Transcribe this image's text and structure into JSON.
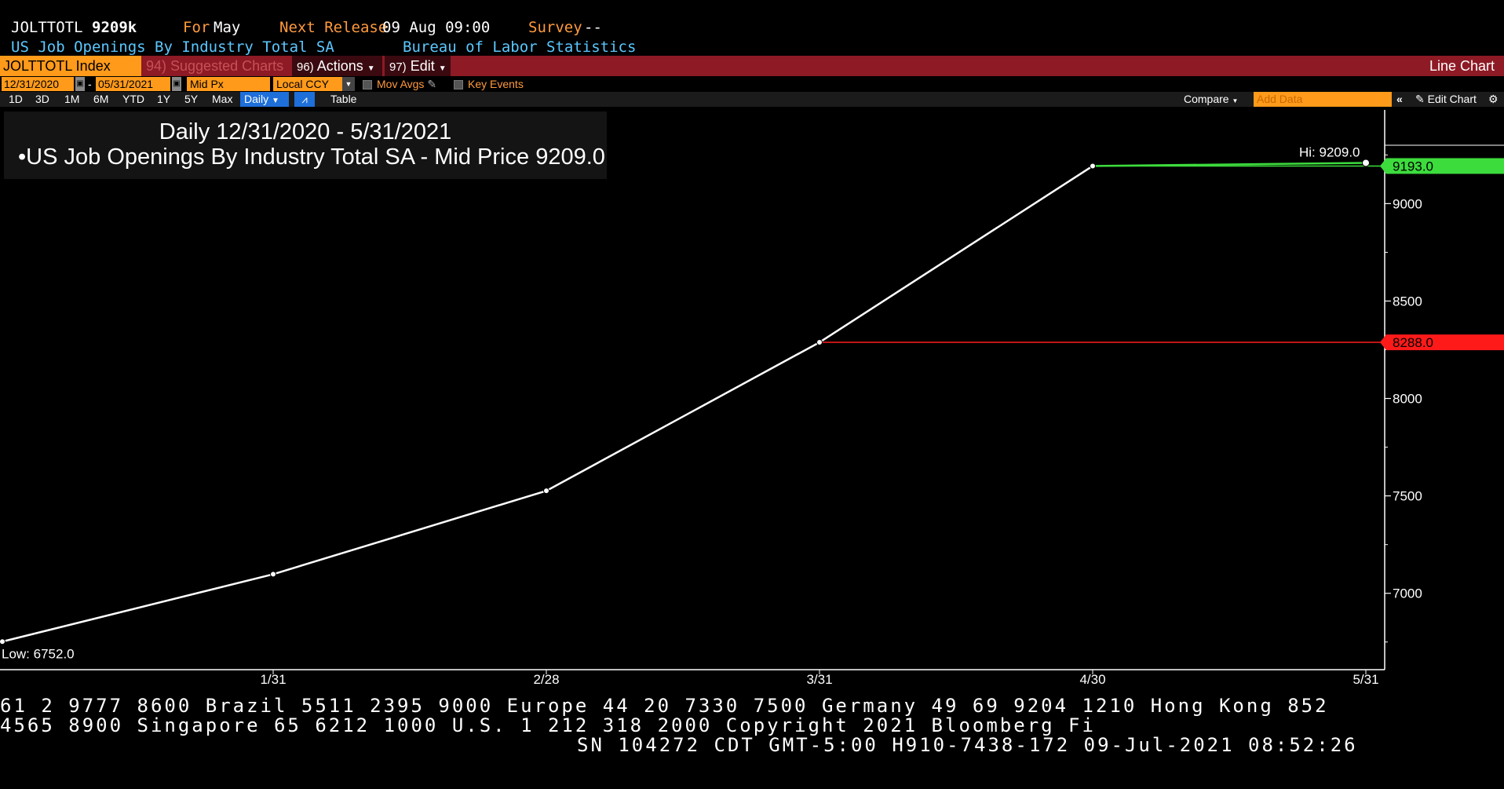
{
  "header": {
    "ticker": "JOLTTOTL",
    "value": "9209k",
    "for_label": "For",
    "for_value": "May",
    "next_release_label": "Next Release",
    "next_release_value": "09 Aug 09:00",
    "survey_label": "Survey",
    "survey_value": "--",
    "description": "US Job Openings By Industry Total SA",
    "source": "Bureau of Labor Statistics"
  },
  "toolbar": {
    "index_field": "JOLTTOTL Index",
    "suggested": "94) Suggested Charts",
    "actions_num": "96)",
    "actions": "Actions",
    "edit_num": "97)",
    "edit": "Edit",
    "chart_type": "Line Chart"
  },
  "controls": {
    "start_date": "12/31/2020",
    "end_date": "05/31/2021",
    "field": "Mid Px",
    "currency": "Local CCY",
    "mov_avgs": "Mov Avgs",
    "key_events": "Key Events"
  },
  "periods": {
    "buttons": [
      "1D",
      "3D",
      "1M",
      "6M",
      "YTD",
      "1Y",
      "5Y",
      "Max"
    ],
    "frequency": "Daily",
    "table": "Table",
    "compare": "Compare",
    "add_data_placeholder": "Add Data",
    "edit_chart": "Edit Chart"
  },
  "legend": {
    "range": "Daily 12/31/2020 - 5/31/2021",
    "series": "US Job Openings By Industry Total SA - Mid Price",
    "series_value": "9209.0"
  },
  "chart_data": {
    "type": "line",
    "x": [
      "12/31",
      "1/31",
      "2/28",
      "3/31",
      "4/30",
      "5/31"
    ],
    "x_tick_labels": [
      "1/31",
      "2/28",
      "3/31",
      "4/30",
      "5/31"
    ],
    "series": [
      {
        "name": "US Job Openings By Industry Total SA - Mid Price",
        "values": [
          6752.0,
          7098.0,
          7526.0,
          8288.0,
          9193.0,
          9209.0
        ],
        "color": "#ffffff"
      }
    ],
    "ylim": [
      6600,
      9360
    ],
    "y_ticks": [
      7000,
      7500,
      8000,
      8500,
      9000
    ],
    "hi_label": "Hi: 9209.0",
    "low_label": "Low: 6752.0",
    "markers": [
      {
        "label": "9193.0",
        "value": 9193.0,
        "from_index": 4,
        "color": "#3ddc3d"
      },
      {
        "label": "8288.0",
        "value": 8288.0,
        "from_index": 3,
        "color": "#ff1a1a"
      }
    ],
    "grid": false,
    "legend_position": "top-left"
  },
  "footer": {
    "line1": "61 2 9777 8600 Brazil 5511 2395 9000 Europe 44 20 7330 7500 Germany 49 69 9204 1210 Hong Kong 852",
    "line2": " 4565 8900       Singapore 65 6212 1000       U.S. 1 212 318 2000       Copyright 2021 Bloomberg Fi",
    "line3": "SN 104272 CDT  GMT-5:00 H910-7438-172 09-Jul-2021 08:52:26"
  },
  "colors": {
    "header_label": "#ff9a3c",
    "header_desc": "#5bc8ff",
    "toolbar_bg": "#8d1a24",
    "field_bg": "#ff9a1a",
    "active_blue": "#1e6fd9"
  }
}
